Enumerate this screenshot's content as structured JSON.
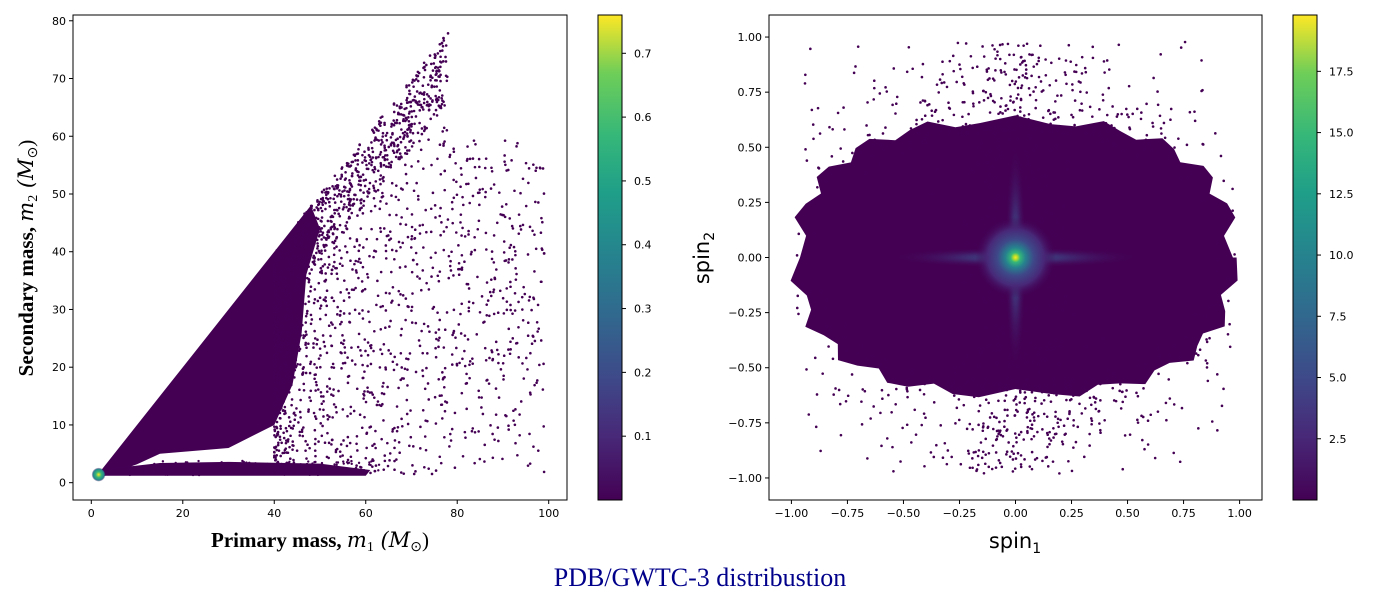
{
  "figure": {
    "suptitle": "PDB/GWTC-3 distribustion"
  },
  "chart_data": [
    {
      "type": "scatter",
      "title": "",
      "xlabel_text": "Primary mass, ",
      "xlabel_math": "m",
      "xlabel_sub": "1",
      "xlabel_unit": " (M",
      "xlabel_unit_sub": "⊙",
      "xlabel_close": ")",
      "ylabel_text": "Secondary mass, ",
      "ylabel_math": "m",
      "ylabel_sub": "2",
      "ylabel_unit": " (M",
      "ylabel_unit_sub": "⊙",
      "ylabel_close": ")",
      "xlim": [
        -4,
        104
      ],
      "ylim": [
        -3,
        81
      ],
      "xticks": [
        0,
        20,
        40,
        60,
        80,
        100
      ],
      "yticks": [
        0,
        10,
        20,
        30,
        40,
        50,
        60,
        70,
        80
      ],
      "colormap": "viridis",
      "colorbar": {
        "min": 0.0,
        "max": 0.76,
        "ticks": [
          0.1,
          0.2,
          0.3,
          0.4,
          0.5,
          0.6,
          0.7
        ]
      },
      "grid": false,
      "description_of_points": "Dense triangular region bounded by m2 = m1 above and m2 ≈ 1.2 below; a secondary band near m2 ≈ 1.5–3 extending to m1 ≈ 62; sparse scatter out to m1 ≈ 99; high-density peak near (1.6, 1.4).",
      "key_points": [
        {
          "x": 1.6,
          "y": 1.4,
          "density": 0.76
        },
        {
          "x": 77,
          "y": 77,
          "density": 0.01
        },
        {
          "x": 99,
          "y": 39.7,
          "density": 0.01
        },
        {
          "x": 62,
          "y": 2,
          "density": 0.01
        }
      ]
    },
    {
      "type": "scatter",
      "title": "",
      "xlabel_text": "spin",
      "xlabel_sub": "1",
      "ylabel_text": "spin",
      "ylabel_sub": "2",
      "xlim": [
        -1.1,
        1.1
      ],
      "ylim": [
        -1.1,
        1.1
      ],
      "xticks": [
        -1.0,
        -0.75,
        -0.5,
        -0.25,
        0.0,
        0.25,
        0.5,
        0.75,
        1.0
      ],
      "yticks": [
        -1.0,
        -0.75,
        -0.5,
        -0.25,
        0.0,
        0.25,
        0.5,
        0.75,
        1.0
      ],
      "colormap": "viridis",
      "colorbar": {
        "min": 0.0,
        "max": 19.8,
        "ticks": [
          2.5,
          5.0,
          7.5,
          10.0,
          12.5,
          15.0,
          17.5
        ]
      },
      "grid": false,
      "description_of_points": "Points fill the square [-1,1]×[-1,1] with highest density in an elliptical core centered at (0,0); sharp peak at origin with a cross-shaped glow along both axes.",
      "key_points": [
        {
          "x": 0.0,
          "y": 0.0,
          "density": 19.8
        }
      ]
    }
  ]
}
